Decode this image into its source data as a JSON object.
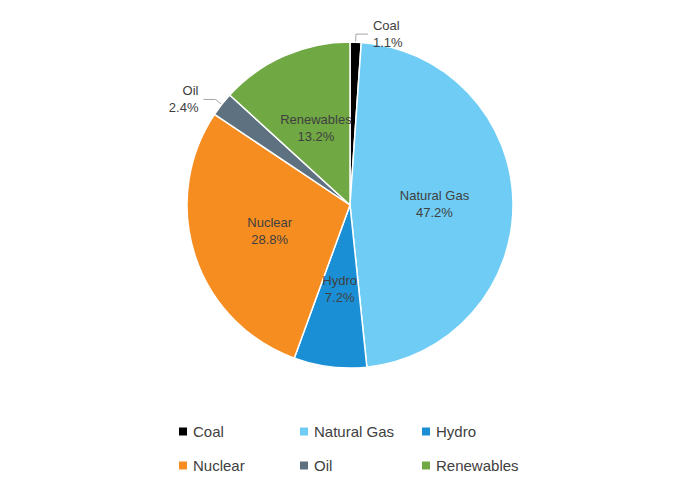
{
  "chart_data": {
    "type": "pie",
    "categories": [
      "Coal",
      "Natural Gas",
      "Hydro",
      "Nuclear",
      "Oil",
      "Renewables"
    ],
    "values": [
      1.1,
      47.2,
      7.2,
      28.8,
      2.4,
      13.2
    ],
    "value_labels": [
      "1.1%",
      "47.2%",
      "7.2%",
      "28.8%",
      "2.4%",
      "13.2%"
    ],
    "colors": [
      "#000000",
      "#6fcdf5",
      "#1b8fd5",
      "#f68d21",
      "#5d7180",
      "#70a844"
    ],
    "data_labels": true,
    "legend": "bottom"
  }
}
